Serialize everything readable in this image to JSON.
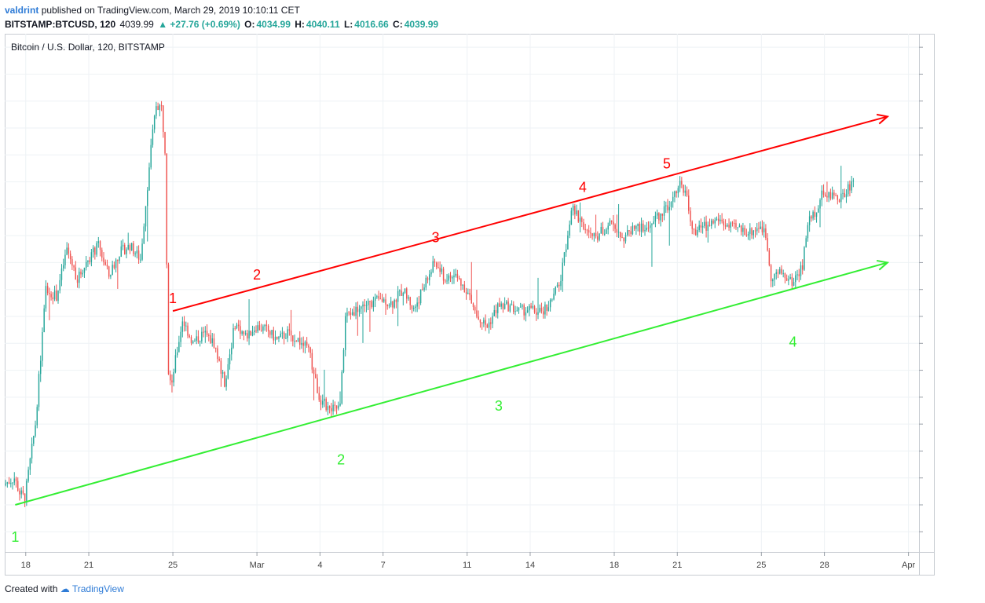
{
  "header": {
    "author": "valdrint",
    "published": "published on TradingView.com, March 29, 2019 10:10:11 CET",
    "symbol": "BITSTAMP:BTCUSD, 120",
    "last": "4039.99",
    "change": "▲ +27.76 (+0.69%)",
    "open_label": "O:",
    "open": "4034.99",
    "high_label": "H:",
    "high": "4040.11",
    "low_label": "L:",
    "low": "4016.66",
    "close_label": "C:",
    "close": "4039.99"
  },
  "footer": {
    "created_with": "Created with",
    "brand": "TradingView"
  },
  "colors": {
    "up": "#26a69a",
    "down": "#ef5350",
    "resistance": "#ff0000",
    "support": "#33ee33",
    "grid": "#eef2f5"
  },
  "chart_data": {
    "type": "candlestick",
    "title": "Bitcoin / U.S. Dollar, 120, BITSTAMP",
    "ylim": [
      3490,
      4260
    ],
    "y_ticks": [
      3520,
      3560,
      3600,
      3640,
      3680,
      3720,
      3760,
      3800,
      3840,
      3880,
      3920,
      3960,
      4000,
      4040,
      4080,
      4120,
      4160,
      4200,
      4240
    ],
    "x_range": [
      "2019-02-17T00:00",
      "2019-04-01T12:00"
    ],
    "x_ticks": [
      {
        "label": "18",
        "date": "2019-02-18"
      },
      {
        "label": "21",
        "date": "2019-02-21"
      },
      {
        "label": "25",
        "date": "2019-02-25"
      },
      {
        "label": "Mar",
        "date": "2019-03-01"
      },
      {
        "label": "4",
        "date": "2019-03-04"
      },
      {
        "label": "7",
        "date": "2019-03-07"
      },
      {
        "label": "11",
        "date": "2019-03-11"
      },
      {
        "label": "14",
        "date": "2019-03-14"
      },
      {
        "label": "18",
        "date": "2019-03-18"
      },
      {
        "label": "21",
        "date": "2019-03-21"
      },
      {
        "label": "25",
        "date": "2019-03-25"
      },
      {
        "label": "28",
        "date": "2019-03-28"
      },
      {
        "label": "Apr",
        "date": "2019-04-01"
      }
    ],
    "price_path": [
      [
        "2019-02-17T00:00",
        3590
      ],
      [
        "2019-02-17T12:00",
        3600
      ],
      [
        "2019-02-17T18:00",
        3578
      ],
      [
        "2019-02-18T00:00",
        3570
      ],
      [
        "2019-02-18T12:00",
        3680
      ],
      [
        "2019-02-19T00:00",
        3880
      ],
      [
        "2019-02-19T12:00",
        3870
      ],
      [
        "2019-02-20T00:00",
        3940
      ],
      [
        "2019-02-20T12:00",
        3895
      ],
      [
        "2019-02-21T00:00",
        3925
      ],
      [
        "2019-02-21T12:00",
        3945
      ],
      [
        "2019-02-22T00:00",
        3900
      ],
      [
        "2019-02-22T12:00",
        3935
      ],
      [
        "2019-02-23T00:00",
        3945
      ],
      [
        "2019-02-23T12:00",
        3925
      ],
      [
        "2019-02-24T00:00",
        4090
      ],
      [
        "2019-02-24T06:00",
        4155
      ],
      [
        "2019-02-24T12:00",
        4150
      ],
      [
        "2019-02-24T16:00",
        4090
      ],
      [
        "2019-02-24T20:00",
        3760
      ],
      [
        "2019-02-25T00:00",
        3745
      ],
      [
        "2019-02-25T12:00",
        3835
      ],
      [
        "2019-02-26T00:00",
        3800
      ],
      [
        "2019-02-26T12:00",
        3815
      ],
      [
        "2019-02-27T00:00",
        3800
      ],
      [
        "2019-02-27T12:00",
        3740
      ],
      [
        "2019-02-28T00:00",
        3830
      ],
      [
        "2019-02-28T12:00",
        3810
      ],
      [
        "2019-03-01T00:00",
        3825
      ],
      [
        "2019-03-01T12:00",
        3820
      ],
      [
        "2019-03-02T00:00",
        3805
      ],
      [
        "2019-03-02T12:00",
        3815
      ],
      [
        "2019-03-03T00:00",
        3805
      ],
      [
        "2019-03-03T12:00",
        3790
      ],
      [
        "2019-03-04T00:00",
        3720
      ],
      [
        "2019-03-04T12:00",
        3700
      ],
      [
        "2019-03-05T00:00",
        3705
      ],
      [
        "2019-03-05T06:00",
        3840
      ],
      [
        "2019-03-05T12:00",
        3845
      ],
      [
        "2019-03-06T00:00",
        3855
      ],
      [
        "2019-03-06T12:00",
        3860
      ],
      [
        "2019-03-07T00:00",
        3865
      ],
      [
        "2019-03-07T12:00",
        3860
      ],
      [
        "2019-03-08T00:00",
        3880
      ],
      [
        "2019-03-08T12:00",
        3850
      ],
      [
        "2019-03-09T00:00",
        3885
      ],
      [
        "2019-03-09T12:00",
        3920
      ],
      [
        "2019-03-10T00:00",
        3895
      ],
      [
        "2019-03-10T12:00",
        3900
      ],
      [
        "2019-03-11T00:00",
        3880
      ],
      [
        "2019-03-11T12:00",
        3840
      ],
      [
        "2019-03-12T00:00",
        3825
      ],
      [
        "2019-03-12T12:00",
        3855
      ],
      [
        "2019-03-13T00:00",
        3855
      ],
      [
        "2019-03-13T12:00",
        3848
      ],
      [
        "2019-03-14T00:00",
        3850
      ],
      [
        "2019-03-14T12:00",
        3845
      ],
      [
        "2019-03-15T00:00",
        3860
      ],
      [
        "2019-03-15T12:00",
        3895
      ],
      [
        "2019-03-16T00:00",
        4000
      ],
      [
        "2019-03-16T12:00",
        3980
      ],
      [
        "2019-03-17T00:00",
        3955
      ],
      [
        "2019-03-17T12:00",
        3968
      ],
      [
        "2019-03-18T00:00",
        3980
      ],
      [
        "2019-03-18T12:00",
        3955
      ],
      [
        "2019-03-19T00:00",
        3975
      ],
      [
        "2019-03-19T12:00",
        3968
      ],
      [
        "2019-03-20T00:00",
        3985
      ],
      [
        "2019-03-20T12:00",
        4000
      ],
      [
        "2019-03-21T00:00",
        4030
      ],
      [
        "2019-03-21T06:00",
        4040
      ],
      [
        "2019-03-21T12:00",
        4015
      ],
      [
        "2019-03-21T18:00",
        3965
      ],
      [
        "2019-03-22T00:00",
        3970
      ],
      [
        "2019-03-22T12:00",
        3975
      ],
      [
        "2019-03-23T00:00",
        3985
      ],
      [
        "2019-03-23T12:00",
        3972
      ],
      [
        "2019-03-24T00:00",
        3970
      ],
      [
        "2019-03-24T12:00",
        3965
      ],
      [
        "2019-03-25T00:00",
        3975
      ],
      [
        "2019-03-25T06:00",
        3960
      ],
      [
        "2019-03-25T12:00",
        3900
      ],
      [
        "2019-03-26T00:00",
        3905
      ],
      [
        "2019-03-26T12:00",
        3890
      ],
      [
        "2019-03-27T00:00",
        3915
      ],
      [
        "2019-03-27T06:00",
        3980
      ],
      [
        "2019-03-27T12:00",
        3990
      ],
      [
        "2019-03-28T00:00",
        4025
      ],
      [
        "2019-03-28T12:00",
        4015
      ],
      [
        "2019-03-29T00:00",
        4020
      ],
      [
        "2019-03-29T08:00",
        4040
      ]
    ],
    "trendlines": [
      {
        "from": [
          "2019-02-25T00:00",
          3848
        ],
        "to": [
          "2019-03-31T00:00",
          4137
        ],
        "color": "#ff0000"
      },
      {
        "from": [
          "2019-02-17T12:00",
          3560
        ],
        "to": [
          "2019-03-31T00:00",
          3920
        ],
        "color": "#33ee33"
      }
    ],
    "annotations": [
      {
        "text": "1",
        "at": [
          "2019-02-25T00:00",
          3860
        ],
        "color": "#ff0000"
      },
      {
        "text": "2",
        "at": [
          "2019-03-01T00:00",
          3895
        ],
        "color": "#ff0000"
      },
      {
        "text": "3",
        "at": [
          "2019-03-09T12:00",
          3950
        ],
        "color": "#ff0000"
      },
      {
        "text": "4",
        "at": [
          "2019-03-16T12:00",
          4025
        ],
        "color": "#ff0000"
      },
      {
        "text": "5",
        "at": [
          "2019-03-20T12:00",
          4060
        ],
        "color": "#ff0000"
      },
      {
        "text": "1",
        "at": [
          "2019-02-17T12:00",
          3505
        ],
        "color": "#33ee33"
      },
      {
        "text": "2",
        "at": [
          "2019-03-05T00:00",
          3620
        ],
        "color": "#33ee33"
      },
      {
        "text": "3",
        "at": [
          "2019-03-12T12:00",
          3700
        ],
        "color": "#33ee33"
      },
      {
        "text": "4",
        "at": [
          "2019-03-26T12:00",
          3795
        ],
        "color": "#33ee33"
      }
    ]
  }
}
